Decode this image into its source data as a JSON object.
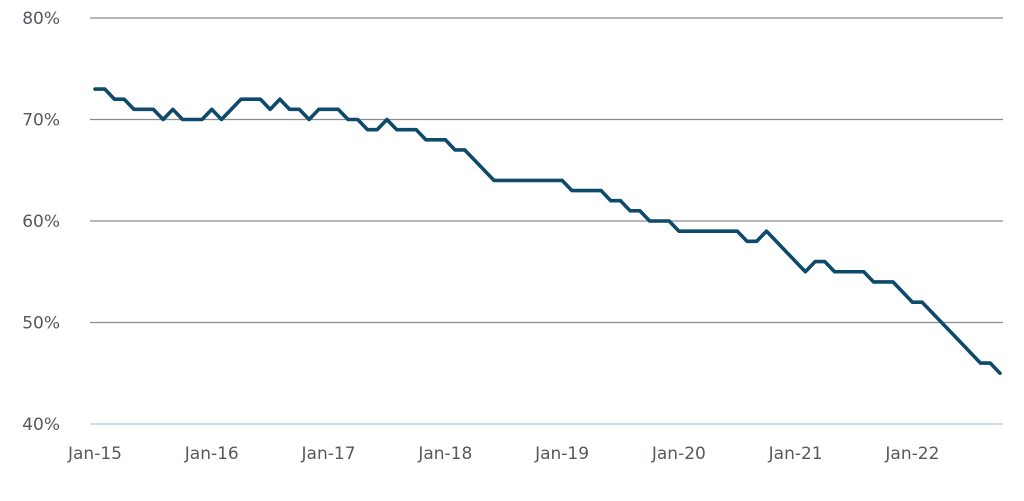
{
  "chart_data": {
    "type": "line",
    "title": "",
    "xlabel": "",
    "ylabel": "",
    "ylim": [
      40,
      80
    ],
    "y_ticks": [
      {
        "value": 40,
        "label": "40%"
      },
      {
        "value": 50,
        "label": "50%"
      },
      {
        "value": 60,
        "label": "60%"
      },
      {
        "value": 70,
        "label": "70%"
      },
      {
        "value": 80,
        "label": "80%"
      }
    ],
    "x_ticks": [
      {
        "value": "2015-01",
        "label": "Jan-15"
      },
      {
        "value": "2016-01",
        "label": "Jan-16"
      },
      {
        "value": "2017-01",
        "label": "Jan-17"
      },
      {
        "value": "2018-01",
        "label": "Jan-18"
      },
      {
        "value": "2019-01",
        "label": "Jan-19"
      },
      {
        "value": "2020-01",
        "label": "Jan-20"
      },
      {
        "value": "2021-01",
        "label": "Jan-21"
      },
      {
        "value": "2022-01",
        "label": "Jan-22"
      }
    ],
    "xlim": [
      "2015-01",
      "2022-10"
    ],
    "grid": true,
    "colors": {
      "line": "#0d4a6b",
      "grid": "#8a8c8f",
      "baseline": "#b9d3e8"
    },
    "series": [
      {
        "x": [
          "2015-01",
          "2015-02",
          "2015-03",
          "2015-04",
          "2015-05",
          "2015-06",
          "2015-07",
          "2015-08",
          "2015-09",
          "2015-10",
          "2015-11",
          "2015-12",
          "2016-01",
          "2016-02",
          "2016-03",
          "2016-04",
          "2016-05",
          "2016-06",
          "2016-07",
          "2016-08",
          "2016-09",
          "2016-10",
          "2016-11",
          "2016-12",
          "2017-01",
          "2017-02",
          "2017-03",
          "2017-04",
          "2017-05",
          "2017-06",
          "2017-07",
          "2017-08",
          "2017-09",
          "2017-10",
          "2017-11",
          "2017-12",
          "2018-01",
          "2018-02",
          "2018-03",
          "2018-04",
          "2018-05",
          "2018-06",
          "2018-07",
          "2018-08",
          "2018-09",
          "2018-10",
          "2018-11",
          "2018-12",
          "2019-01",
          "2019-02",
          "2019-03",
          "2019-04",
          "2019-05",
          "2019-06",
          "2019-07",
          "2019-08",
          "2019-09",
          "2019-10",
          "2019-11",
          "2019-12",
          "2020-01",
          "2020-02",
          "2020-03",
          "2020-04",
          "2020-05",
          "2020-06",
          "2020-07",
          "2020-08",
          "2020-09",
          "2020-10",
          "2020-11",
          "2020-12",
          "2021-01",
          "2021-02",
          "2021-03",
          "2021-04",
          "2021-05",
          "2021-06",
          "2021-07",
          "2021-08",
          "2021-09",
          "2021-10",
          "2021-11",
          "2021-12",
          "2022-01",
          "2022-02",
          "2022-03",
          "2022-04",
          "2022-05",
          "2022-06",
          "2022-07",
          "2022-08",
          "2022-09",
          "2022-10"
        ],
        "values": [
          73,
          73,
          72,
          72,
          71,
          71,
          71,
          70,
          71,
          70,
          70,
          70,
          71,
          70,
          71,
          72,
          72,
          72,
          71,
          72,
          71,
          71,
          70,
          71,
          71,
          71,
          70,
          70,
          69,
          69,
          70,
          69,
          69,
          69,
          68,
          68,
          68,
          67,
          67,
          66,
          65,
          64,
          64,
          64,
          64,
          64,
          64,
          64,
          64,
          63,
          63,
          63,
          63,
          62,
          62,
          61,
          61,
          60,
          60,
          60,
          59,
          59,
          59,
          59,
          59,
          59,
          59,
          58,
          58,
          59,
          58,
          57,
          56,
          55,
          56,
          56,
          55,
          55,
          55,
          55,
          54,
          54,
          54,
          53,
          52,
          52,
          51,
          50,
          49,
          48,
          47,
          46,
          46,
          45
        ]
      }
    ]
  }
}
